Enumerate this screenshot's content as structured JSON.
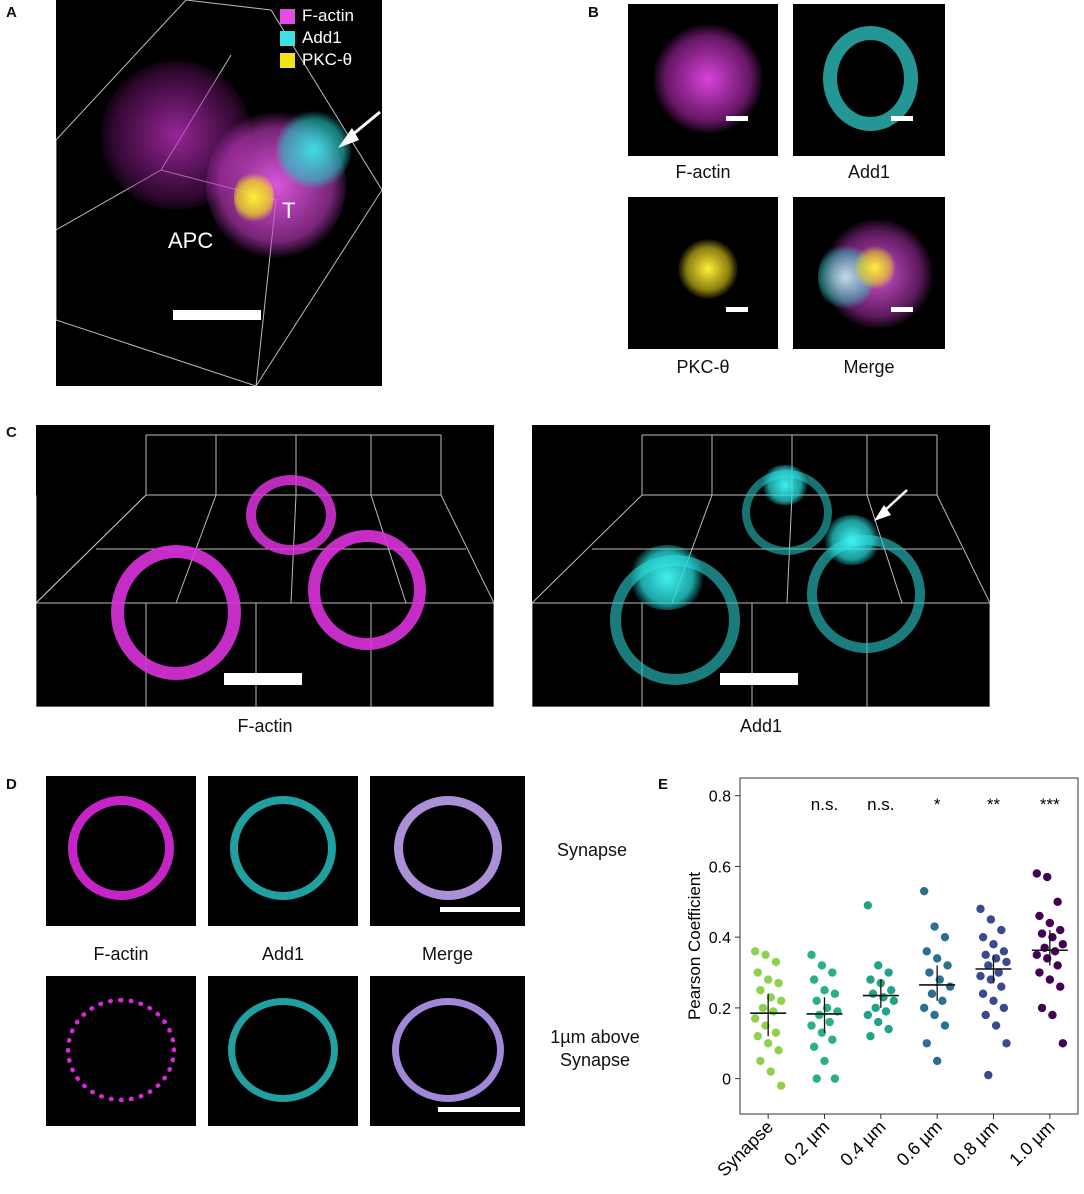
{
  "panels": {
    "A": {
      "letter": "A",
      "legend": [
        {
          "label": "F-actin",
          "color": "#e34de6"
        },
        {
          "label": "Add1",
          "color": "#3fe0e0"
        },
        {
          "label": "PKC-θ",
          "color": "#f2e21a"
        }
      ],
      "label_apc": "APC",
      "label_t": "T"
    },
    "B": {
      "letter": "B",
      "captions": [
        "F-actin",
        "Add1",
        "PKC-θ",
        "Merge"
      ]
    },
    "C": {
      "letter": "C",
      "captions": [
        "F-actin",
        "Add1"
      ]
    },
    "D": {
      "letter": "D",
      "col_captions": [
        "F-actin",
        "Add1",
        "Merge"
      ],
      "row_label_1": "Synapse",
      "row_label_2a": "1µm above",
      "row_label_2b": "Synapse"
    },
    "E": {
      "letter": "E"
    }
  },
  "colors": {
    "magenta": "#e034e0",
    "cyan": "#2ad6d6",
    "yellow": "#f0e020"
  },
  "chart_data": {
    "type": "scatter",
    "ylabel": "Pearson Coefficient",
    "xlabel": "",
    "ylim": [
      -0.1,
      0.85
    ],
    "yticks": [
      0,
      0.2,
      0.4,
      0.6,
      0.8
    ],
    "ytick_labels": [
      "0",
      "0.2",
      "0.4",
      "0.6",
      "0.8"
    ],
    "categories": [
      "Synapse",
      "0.2 µm",
      "0.4 µm",
      "0.6 µm",
      "0.8 µm",
      "1.0 µm"
    ],
    "significance": [
      "",
      "n.s.",
      "n.s.",
      "*",
      "**",
      "***"
    ],
    "colors": [
      "#8fd14f",
      "#2ab17e",
      "#22a288",
      "#2c6f8e",
      "#3b4a8c",
      "#440154"
    ],
    "means": [
      0.185,
      0.183,
      0.235,
      0.265,
      0.31,
      0.363
    ],
    "ci": [
      [
        0.12,
        0.24
      ],
      [
        0.13,
        0.23
      ],
      [
        0.2,
        0.28
      ],
      [
        0.22,
        0.32
      ],
      [
        0.27,
        0.35
      ],
      [
        0.32,
        0.42
      ]
    ],
    "points": [
      [
        0.36,
        0.35,
        0.33,
        0.3,
        0.28,
        0.27,
        0.25,
        0.23,
        0.22,
        0.2,
        0.19,
        0.17,
        0.15,
        0.13,
        0.12,
        0.1,
        0.08,
        0.05,
        0.02,
        -0.02
      ],
      [
        0.35,
        0.32,
        0.3,
        0.28,
        0.25,
        0.24,
        0.22,
        0.2,
        0.19,
        0.18,
        0.16,
        0.15,
        0.13,
        0.11,
        0.09,
        0.05,
        0.0,
        0.0
      ],
      [
        0.49,
        0.32,
        0.3,
        0.28,
        0.27,
        0.25,
        0.24,
        0.23,
        0.22,
        0.2,
        0.19,
        0.18,
        0.16,
        0.14,
        0.12
      ],
      [
        0.53,
        0.43,
        0.4,
        0.36,
        0.34,
        0.32,
        0.3,
        0.28,
        0.26,
        0.24,
        0.22,
        0.2,
        0.18,
        0.15,
        0.1,
        0.05
      ],
      [
        0.48,
        0.45,
        0.42,
        0.4,
        0.38,
        0.36,
        0.35,
        0.34,
        0.33,
        0.32,
        0.3,
        0.29,
        0.28,
        0.26,
        0.24,
        0.22,
        0.2,
        0.18,
        0.15,
        0.1,
        0.01
      ],
      [
        0.58,
        0.57,
        0.5,
        0.46,
        0.44,
        0.42,
        0.41,
        0.4,
        0.38,
        0.37,
        0.36,
        0.35,
        0.34,
        0.32,
        0.3,
        0.28,
        0.26,
        0.2,
        0.18,
        0.1
      ]
    ]
  }
}
